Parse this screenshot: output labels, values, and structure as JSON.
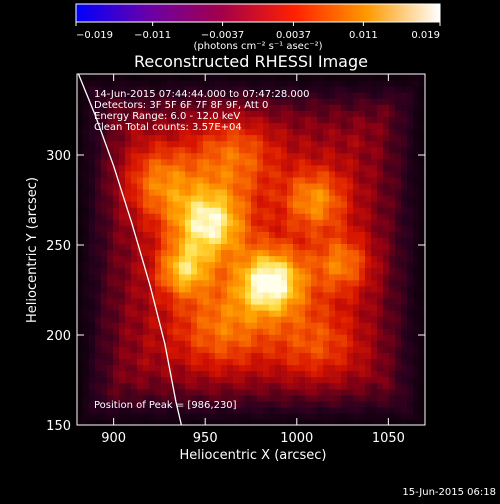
{
  "chart_data": {
    "type": "heatmap",
    "title": "Reconstructed RHESSI Image",
    "xlabel": "Heliocentric X (arcsec)",
    "ylabel": "Heliocentric Y (arcsec)",
    "xlim": [
      880,
      1070
    ],
    "ylim": [
      150,
      345
    ],
    "x_ticks": [
      900,
      950,
      1000,
      1050
    ],
    "y_ticks": [
      150,
      200,
      250,
      300
    ],
    "colorbar": {
      "range": [
        -0.019,
        0.019
      ],
      "tick_values": [
        -0.019,
        -0.011,
        -0.0037,
        0.0037,
        0.011,
        0.019
      ],
      "tick_labels": [
        "−0.019",
        "−0.011",
        "−0.0037",
        "0.0037",
        "0.011",
        "0.019"
      ],
      "units_label": "(photons cm⁻² s⁻¹ asec⁻²)",
      "colors": [
        "#0000ff",
        "#6a00a8",
        "#a3004a",
        "#ff2000",
        "#ff9a00",
        "#ffffff"
      ]
    },
    "annotations": [
      "14-Jun-2015 07:44:44.000 to 07:47:28.000",
      "Detectors: 3F 5F 6F 7F 8F 9F, Att 0",
      "Energy Range: 6.0 - 12.0 keV",
      "Clean     Total counts: 3.57E+04"
    ],
    "peak_label": "Position of Peak = [986,230]",
    "peak": [
      986,
      230
    ],
    "sources": [
      {
        "x": 986,
        "y": 230,
        "sigma": 13,
        "amp": 1.0
      },
      {
        "x": 952,
        "y": 262,
        "sigma": 14,
        "amp": 0.92
      },
      {
        "x": 938,
        "y": 236,
        "sigma": 10,
        "amp": 0.65
      },
      {
        "x": 1010,
        "y": 275,
        "sigma": 12,
        "amp": 0.55
      },
      {
        "x": 965,
        "y": 300,
        "sigma": 16,
        "amp": 0.45
      },
      {
        "x": 925,
        "y": 285,
        "sigma": 14,
        "amp": 0.5
      },
      {
        "x": 1025,
        "y": 240,
        "sigma": 11,
        "amp": 0.5
      },
      {
        "x": 960,
        "y": 205,
        "sigma": 18,
        "amp": 0.45
      },
      {
        "x": 1010,
        "y": 195,
        "sigma": 16,
        "amp": 0.35
      }
    ],
    "limb_points": [
      [
        880,
        347
      ],
      [
        890,
        322
      ],
      [
        900,
        294
      ],
      [
        910,
        262
      ],
      [
        920,
        227
      ],
      [
        928,
        195
      ],
      [
        934,
        163
      ],
      [
        937,
        150
      ]
    ]
  },
  "footer": {
    "timestamp": "15-Jun-2015 06:18"
  }
}
